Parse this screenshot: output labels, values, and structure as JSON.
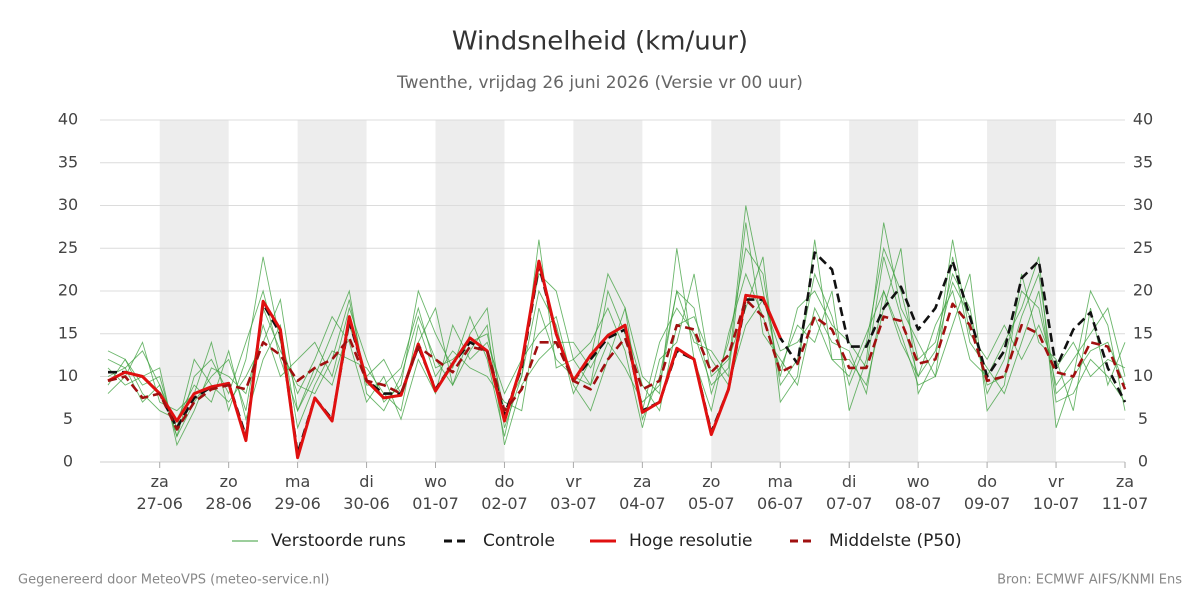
{
  "chart_data": {
    "type": "line",
    "title": "Windsnelheid (km/uur)",
    "subtitle": "Twenthe, vrijdag 26 juni 2026 (Versie vr 00 uur)",
    "footer_left": "Gegenereerd door MeteoVPS (meteo-service.nl)",
    "footer_right": "Bron: ECMWF AIFS/KNMI Ens",
    "categories": [
      null,
      null,
      null,
      [
        "za",
        "27-06"
      ],
      null,
      null,
      null,
      [
        "zo",
        "28-06"
      ],
      null,
      null,
      null,
      [
        "ma",
        "29-06"
      ],
      null,
      null,
      null,
      [
        "di",
        "30-06"
      ],
      null,
      null,
      null,
      [
        "wo",
        "01-07"
      ],
      null,
      null,
      null,
      [
        "do",
        "02-07"
      ],
      null,
      null,
      null,
      [
        "vr",
        "03-07"
      ],
      null,
      null,
      null,
      [
        "za",
        "04-07"
      ],
      null,
      null,
      null,
      [
        "zo",
        "05-07"
      ],
      null,
      null,
      null,
      [
        "ma",
        "06-07"
      ],
      null,
      null,
      null,
      [
        "di",
        "07-07"
      ],
      null,
      null,
      null,
      [
        "wo",
        "08-07"
      ],
      null,
      null,
      null,
      [
        "do",
        "09-07"
      ],
      null,
      null,
      null,
      [
        "vr",
        "10-07"
      ],
      null,
      null,
      null,
      [
        "za",
        "11-07"
      ]
    ],
    "ylim": [
      0,
      40
    ],
    "yticks": [
      0,
      5,
      10,
      15,
      20,
      25,
      30,
      35,
      40
    ],
    "grid": true,
    "ensemble": {
      "name": "Verstoorde runs",
      "color": "#3a9e3a",
      "runs": [
        [
          12,
          11,
          13,
          9,
          3,
          10,
          12,
          8,
          14,
          20,
          12,
          6,
          10,
          15,
          20,
          8,
          6,
          10,
          17,
          12,
          9,
          15,
          18,
          4,
          10,
          20,
          16,
          8,
          12,
          22,
          18,
          5,
          10,
          20,
          18,
          8,
          14,
          25,
          22,
          9,
          12,
          22,
          17,
          9,
          14,
          25,
          20,
          12,
          14,
          22,
          18,
          8,
          12,
          20,
          18,
          9,
          12,
          15,
          18,
          10
        ],
        [
          9,
          12,
          8,
          6,
          5,
          9,
          7,
          13,
          5,
          12,
          16,
          4,
          9,
          13,
          12,
          11,
          8,
          6,
          16,
          10,
          13,
          11,
          10,
          7,
          6,
          18,
          12,
          10,
          9,
          14,
          11,
          7,
          9,
          20,
          14,
          13,
          10,
          28,
          15,
          12,
          9,
          18,
          14,
          13,
          8,
          20,
          15,
          9,
          10,
          24,
          14,
          11,
          8,
          14,
          20,
          7,
          8,
          12,
          10,
          7
        ],
        [
          11,
          9,
          10,
          11,
          2,
          6,
          11,
          10,
          8,
          16,
          10,
          12,
          14,
          10,
          18,
          12,
          7,
          9,
          20,
          15,
          11,
          17,
          12,
          3,
          12,
          15,
          17,
          9,
          6,
          12,
          18,
          10,
          8,
          25,
          12,
          6,
          15,
          22,
          17,
          11,
          16,
          14,
          20,
          6,
          12,
          28,
          18,
          14,
          10,
          16,
          22,
          6,
          9,
          22,
          14,
          12,
          6,
          18,
          9,
          14
        ],
        [
          8,
          10,
          14,
          7,
          6,
          8,
          14,
          6,
          12,
          24,
          14,
          8,
          12,
          17,
          14,
          7,
          10,
          5,
          12,
          8,
          16,
          12,
          14,
          8,
          12,
          22,
          20,
          12,
          14,
          18,
          13,
          4,
          12,
          14,
          22,
          10,
          12,
          18,
          24,
          7,
          10,
          26,
          12,
          10,
          15,
          20,
          14,
          10,
          16,
          20,
          12,
          10,
          14,
          18,
          24,
          4,
          10,
          20,
          16,
          6
        ],
        [
          10,
          11,
          7,
          9,
          4,
          12,
          9,
          7,
          10,
          14,
          19,
          6,
          11,
          9,
          16,
          10,
          12,
          8,
          14,
          18,
          9,
          13,
          16,
          2,
          9,
          12,
          14,
          14,
          11,
          15,
          16,
          9,
          6,
          16,
          17,
          12,
          9,
          16,
          19,
          13,
          14,
          17,
          12,
          12,
          9,
          18,
          25,
          8,
          12,
          26,
          15,
          12,
          16,
          12,
          16,
          11,
          14,
          10,
          12,
          11
        ],
        [
          13,
          12,
          9,
          10,
          3,
          7,
          10,
          12,
          6,
          18,
          13,
          9,
          8,
          12,
          19,
          9,
          9,
          11,
          18,
          11,
          12,
          14,
          15,
          6,
          10,
          26,
          11,
          12,
          9,
          20,
          15,
          6,
          14,
          18,
          15,
          9,
          11,
          30,
          20,
          10,
          18,
          20,
          16,
          14,
          11,
          24,
          17,
          10,
          13,
          21,
          17,
          9,
          10,
          17,
          22,
          8,
          10,
          13,
          14,
          9
        ]
      ]
    },
    "series": [
      {
        "name": "Controle",
        "color": "#111111",
        "dash": true,
        "values": [
          10.5,
          10.5,
          10,
          8,
          4,
          7.5,
          8.8,
          9.2,
          3,
          18.5,
          15,
          1,
          7.5,
          5,
          16.5,
          9.5,
          8,
          8,
          13.5,
          8.5,
          11.5,
          14,
          13,
          5.5,
          11,
          23,
          15,
          9.5,
          12,
          14.5,
          15.5,
          6,
          7,
          13,
          12,
          3.5,
          8.5,
          19,
          19,
          14.5,
          11.5,
          24.5,
          22.5,
          13.5,
          13.5,
          18,
          20.5,
          15.5,
          18,
          23.5,
          17,
          10,
          13,
          21.5,
          23.5,
          11,
          15.5,
          17.5,
          11,
          7
        ]
      },
      {
        "name": "Hoge resolutie",
        "color": "#e01010",
        "dash": false,
        "values": [
          9.5,
          10.5,
          10,
          8,
          4.8,
          8,
          8.8,
          9.2,
          2.5,
          18.8,
          15.5,
          0.5,
          7.5,
          4.8,
          17,
          9.5,
          7.5,
          7.8,
          13.8,
          8.3,
          11.5,
          14.5,
          13,
          4.8,
          11.5,
          23.5,
          15,
          9.5,
          12.5,
          14.8,
          16,
          5.8,
          7,
          13.3,
          12,
          3.2,
          8.5,
          19.5,
          19.2,
          14.5,
          null,
          null,
          null,
          null,
          null,
          null,
          null,
          null,
          null,
          null,
          null,
          null,
          null,
          null,
          null,
          null,
          null,
          null,
          null,
          null
        ]
      },
      {
        "name": "Middelste (P50)",
        "color": "#a01010",
        "dash": true,
        "values": [
          9.5,
          10,
          7.5,
          8,
          3.8,
          7,
          8.5,
          9,
          8.5,
          14,
          12.5,
          9.5,
          11,
          12,
          14.5,
          9.5,
          9,
          8,
          13.5,
          12,
          10.5,
          13.5,
          13,
          6,
          8.5,
          14,
          14,
          9.5,
          8.5,
          12,
          14.5,
          8.5,
          9.5,
          16,
          15.5,
          10.5,
          12.5,
          19,
          17,
          10.5,
          11.5,
          17,
          15.5,
          11,
          11,
          17,
          16.5,
          11.5,
          12,
          18.5,
          16,
          9.5,
          10,
          16,
          15,
          10.5,
          10,
          14,
          13.5,
          8.5
        ]
      }
    ]
  }
}
